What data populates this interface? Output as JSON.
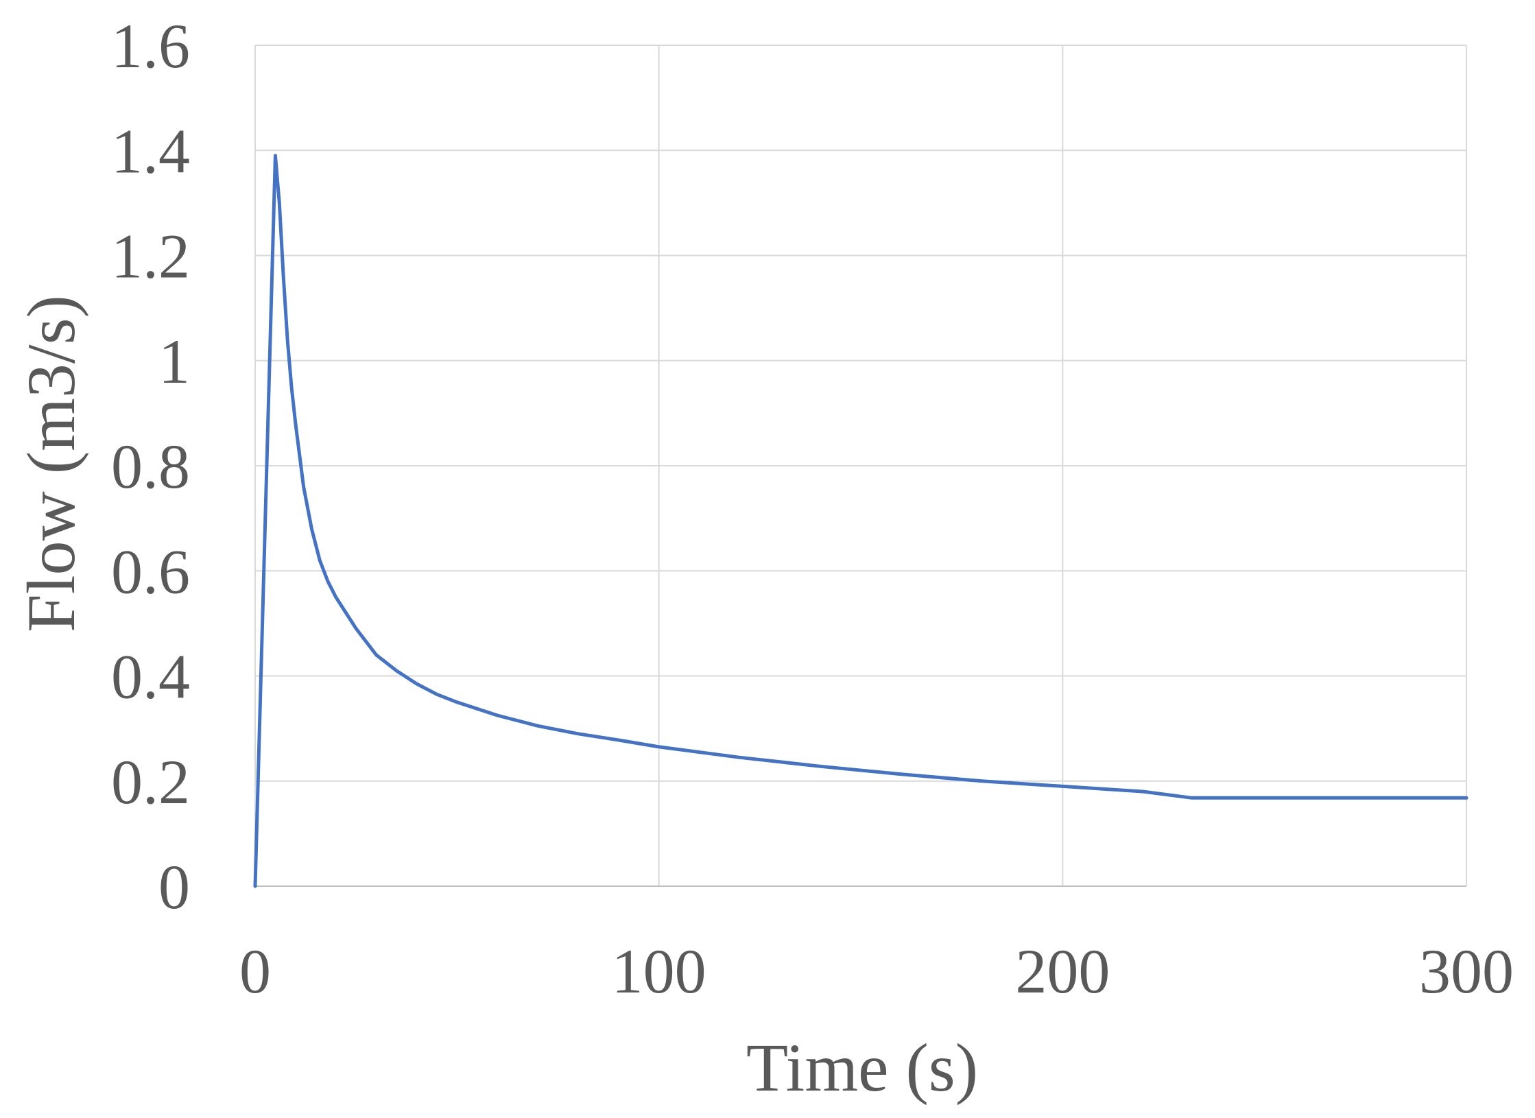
{
  "chart_data": {
    "type": "line",
    "title": "",
    "xlabel": "Time (s)",
    "ylabel": "Flow (m3/s)",
    "xlim": [
      0,
      300
    ],
    "ylim": [
      0,
      1.6
    ],
    "x_ticks": [
      "0",
      "100",
      "200",
      "300"
    ],
    "y_ticks": [
      "0",
      "0.2",
      "0.4",
      "0.6",
      "0.8",
      "1",
      "1.2",
      "1.4",
      "1.6"
    ],
    "grid": true,
    "legend": "none",
    "series": [
      {
        "color": "#4472C4",
        "x": [
          0,
          5,
          6,
          7,
          8,
          9,
          10,
          12,
          14,
          16,
          18,
          20,
          25,
          30,
          35,
          40,
          45,
          50,
          60,
          70,
          80,
          90,
          100,
          120,
          140,
          160,
          180,
          200,
          220,
          232,
          240,
          260,
          280,
          300
        ],
        "y": [
          0,
          1.39,
          1.3,
          1.16,
          1.04,
          0.95,
          0.88,
          0.76,
          0.68,
          0.62,
          0.58,
          0.55,
          0.49,
          0.44,
          0.41,
          0.385,
          0.365,
          0.35,
          0.325,
          0.305,
          0.29,
          0.278,
          0.265,
          0.245,
          0.228,
          0.213,
          0.2,
          0.19,
          0.18,
          0.168,
          0.168,
          0.168,
          0.168,
          0.168
        ]
      }
    ]
  }
}
